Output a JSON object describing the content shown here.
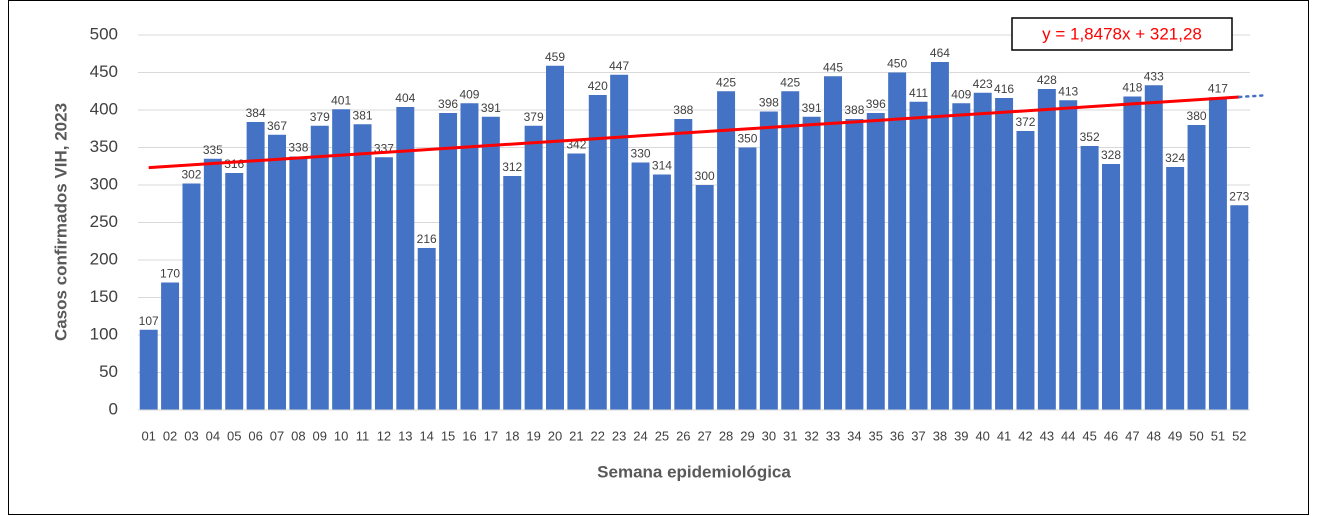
{
  "chart_data": {
    "type": "bar",
    "x_label": "Semana epidemiológica",
    "y_label": "Casos confirmados VIH, 2023",
    "categories": [
      "01",
      "02",
      "03",
      "04",
      "05",
      "06",
      "07",
      "08",
      "09",
      "10",
      "11",
      "12",
      "13",
      "14",
      "15",
      "16",
      "17",
      "18",
      "19",
      "20",
      "21",
      "22",
      "23",
      "24",
      "25",
      "26",
      "27",
      "28",
      "29",
      "30",
      "31",
      "32",
      "33",
      "34",
      "35",
      "36",
      "37",
      "38",
      "39",
      "40",
      "41",
      "42",
      "43",
      "44",
      "45",
      "46",
      "47",
      "48",
      "49",
      "50",
      "51",
      "52"
    ],
    "values": [
      107,
      170,
      302,
      335,
      316,
      384,
      367,
      338,
      379,
      401,
      381,
      337,
      404,
      216,
      396,
      409,
      391,
      312,
      379,
      459,
      342,
      420,
      447,
      330,
      314,
      388,
      300,
      425,
      350,
      398,
      425,
      391,
      445,
      388,
      396,
      450,
      411,
      464,
      409,
      423,
      416,
      372,
      428,
      413,
      352,
      328,
      418,
      433,
      324,
      380,
      417,
      273
    ],
    "color": "#4472c4",
    "ylim": [
      0,
      500
    ],
    "yticks": [
      0,
      50,
      100,
      150,
      200,
      250,
      300,
      350,
      400,
      450,
      500
    ],
    "grid": true,
    "trendline": {
      "slope": 1.8478,
      "intercept": 321.28,
      "label": "y = 1,8478x + 321,28",
      "color": "#ff0000"
    }
  }
}
